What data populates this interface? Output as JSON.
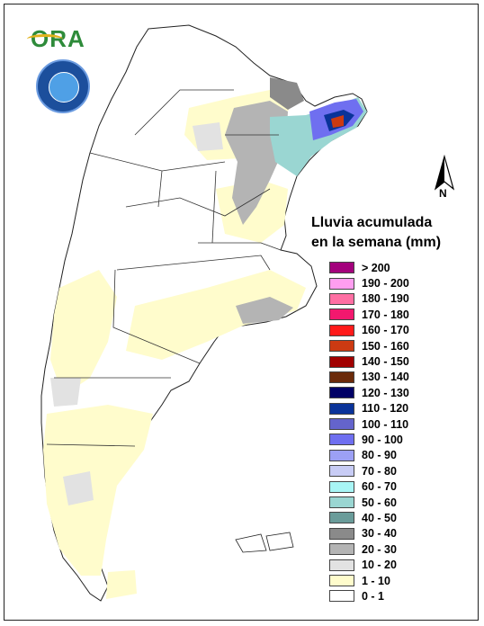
{
  "logos": {
    "ora_text": "ORA",
    "seal_icon": "smn-seal-icon"
  },
  "north_arrow": {
    "label": "N",
    "icon": "north-arrow-icon"
  },
  "legend": {
    "title_line1": "Lluvia acumulada",
    "title_line2": "en la semana (mm)",
    "items": [
      {
        "label": "> 200",
        "color": "#a3007c"
      },
      {
        "label": "190 - 200",
        "color": "#ff9ef0"
      },
      {
        "label": "180 - 190",
        "color": "#ff6fa3"
      },
      {
        "label": "170 - 180",
        "color": "#f2186e"
      },
      {
        "label": "160 - 170",
        "color": "#ff1a1a"
      },
      {
        "label": "150 - 160",
        "color": "#cc3a12"
      },
      {
        "label": "140 - 150",
        "color": "#a10000"
      },
      {
        "label": "130 - 140",
        "color": "#6b2a0a"
      },
      {
        "label": "120 - 130",
        "color": "#000066"
      },
      {
        "label": "110 - 120",
        "color": "#0a3399"
      },
      {
        "label": "100 - 110",
        "color": "#6464cc"
      },
      {
        "label": "90 - 100",
        "color": "#6f6ff0"
      },
      {
        "label": "80 - 90",
        "color": "#9ca0f5"
      },
      {
        "label": "70 - 80",
        "color": "#c8ccf5"
      },
      {
        "label": "60 - 70",
        "color": "#a8f5f5"
      },
      {
        "label": "50 - 60",
        "color": "#9ad6d2"
      },
      {
        "label": "40 - 50",
        "color": "#6a9c9a"
      },
      {
        "label": "30 - 40",
        "color": "#8a8a8a"
      },
      {
        "label": "20 - 30",
        "color": "#b4b4b4"
      },
      {
        "label": "10 - 20",
        "color": "#e2e2e2"
      },
      {
        "label": "1 - 10",
        "color": "#fffccc"
      },
      {
        "label": "0 - 1",
        "color": "#ffffff"
      }
    ]
  }
}
